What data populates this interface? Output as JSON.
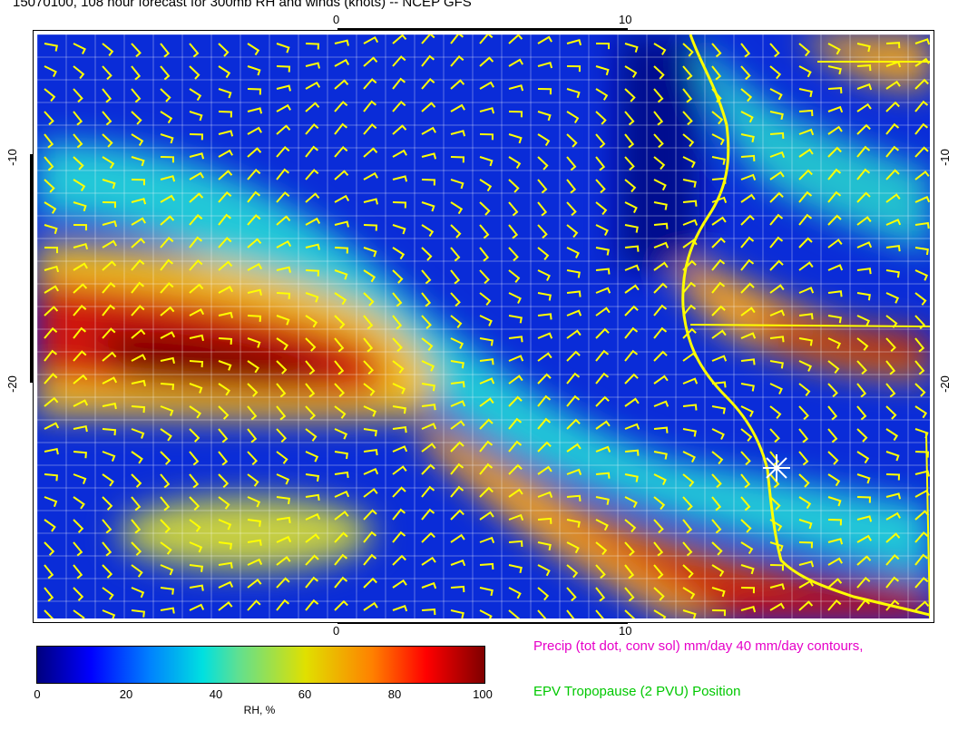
{
  "title": "15070100, 108 hour forecast for 300mb RH and winds (knots) -- NCEP GFS",
  "axes": {
    "top_labels": [
      "0",
      "10"
    ],
    "bottom_labels": [
      "0",
      "10"
    ],
    "left_labels": [
      "-10",
      "-20"
    ],
    "right_labels": [
      "-10",
      "-20"
    ]
  },
  "colorbar": {
    "ticks": [
      "0",
      "20",
      "40",
      "60",
      "80",
      "100"
    ],
    "label": "RH, %",
    "colors": [
      "#00007f",
      "#0000ff",
      "#0080ff",
      "#00e0e0",
      "#60e090",
      "#e0e000",
      "#ff8000",
      "#ff0000",
      "#7f0000"
    ]
  },
  "legend": {
    "precip": "Precip (tot dot, conv sol) mm/day 40 mm/day contours,",
    "epv": "EPV Tropopause (2 PVU) Position"
  },
  "overlay_colors": {
    "wind_barbs": "#ffff00",
    "coastline": "#ffff00",
    "gridlines": "#ffffff"
  }
}
